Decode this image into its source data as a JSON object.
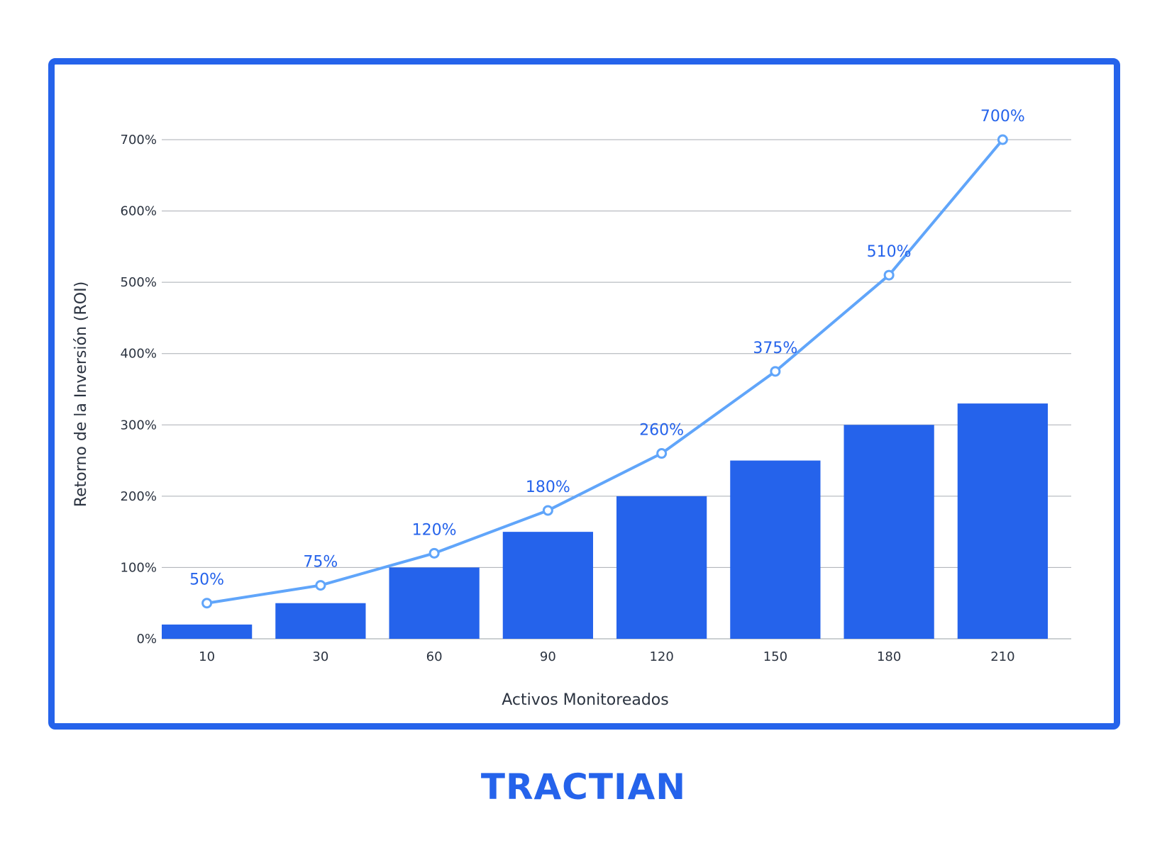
{
  "chart_data": {
    "type": "bar",
    "categories": [
      "10",
      "30",
      "60",
      "90",
      "120",
      "150",
      "180",
      "210"
    ],
    "series": [
      {
        "type": "bar",
        "values": [
          20,
          50,
          100,
          150,
          200,
          250,
          300,
          330
        ],
        "color": "#2563eb"
      },
      {
        "type": "line",
        "values": [
          50,
          75,
          120,
          180,
          260,
          375,
          510,
          700
        ],
        "color": "#60a5fa",
        "data_labels": [
          "50%",
          "75%",
          "120%",
          "180%",
          "260%",
          "375%",
          "510%",
          "700%"
        ]
      }
    ],
    "xlabel": "Activos Monitoreados",
    "ylabel": "Retorno de la Inversión (ROI)",
    "ylim": [
      0,
      700
    ],
    "yticks": [
      0,
      100,
      200,
      300,
      400,
      500,
      600,
      700
    ],
    "ytick_labels": [
      "0%",
      "100%",
      "200%",
      "300%",
      "400%",
      "500%",
      "600%",
      "700%"
    ],
    "grid": true,
    "legend": "none"
  },
  "frame_color": "#2563eb",
  "logo": {
    "text": "TRACTIAN",
    "color": "#2563eb"
  }
}
